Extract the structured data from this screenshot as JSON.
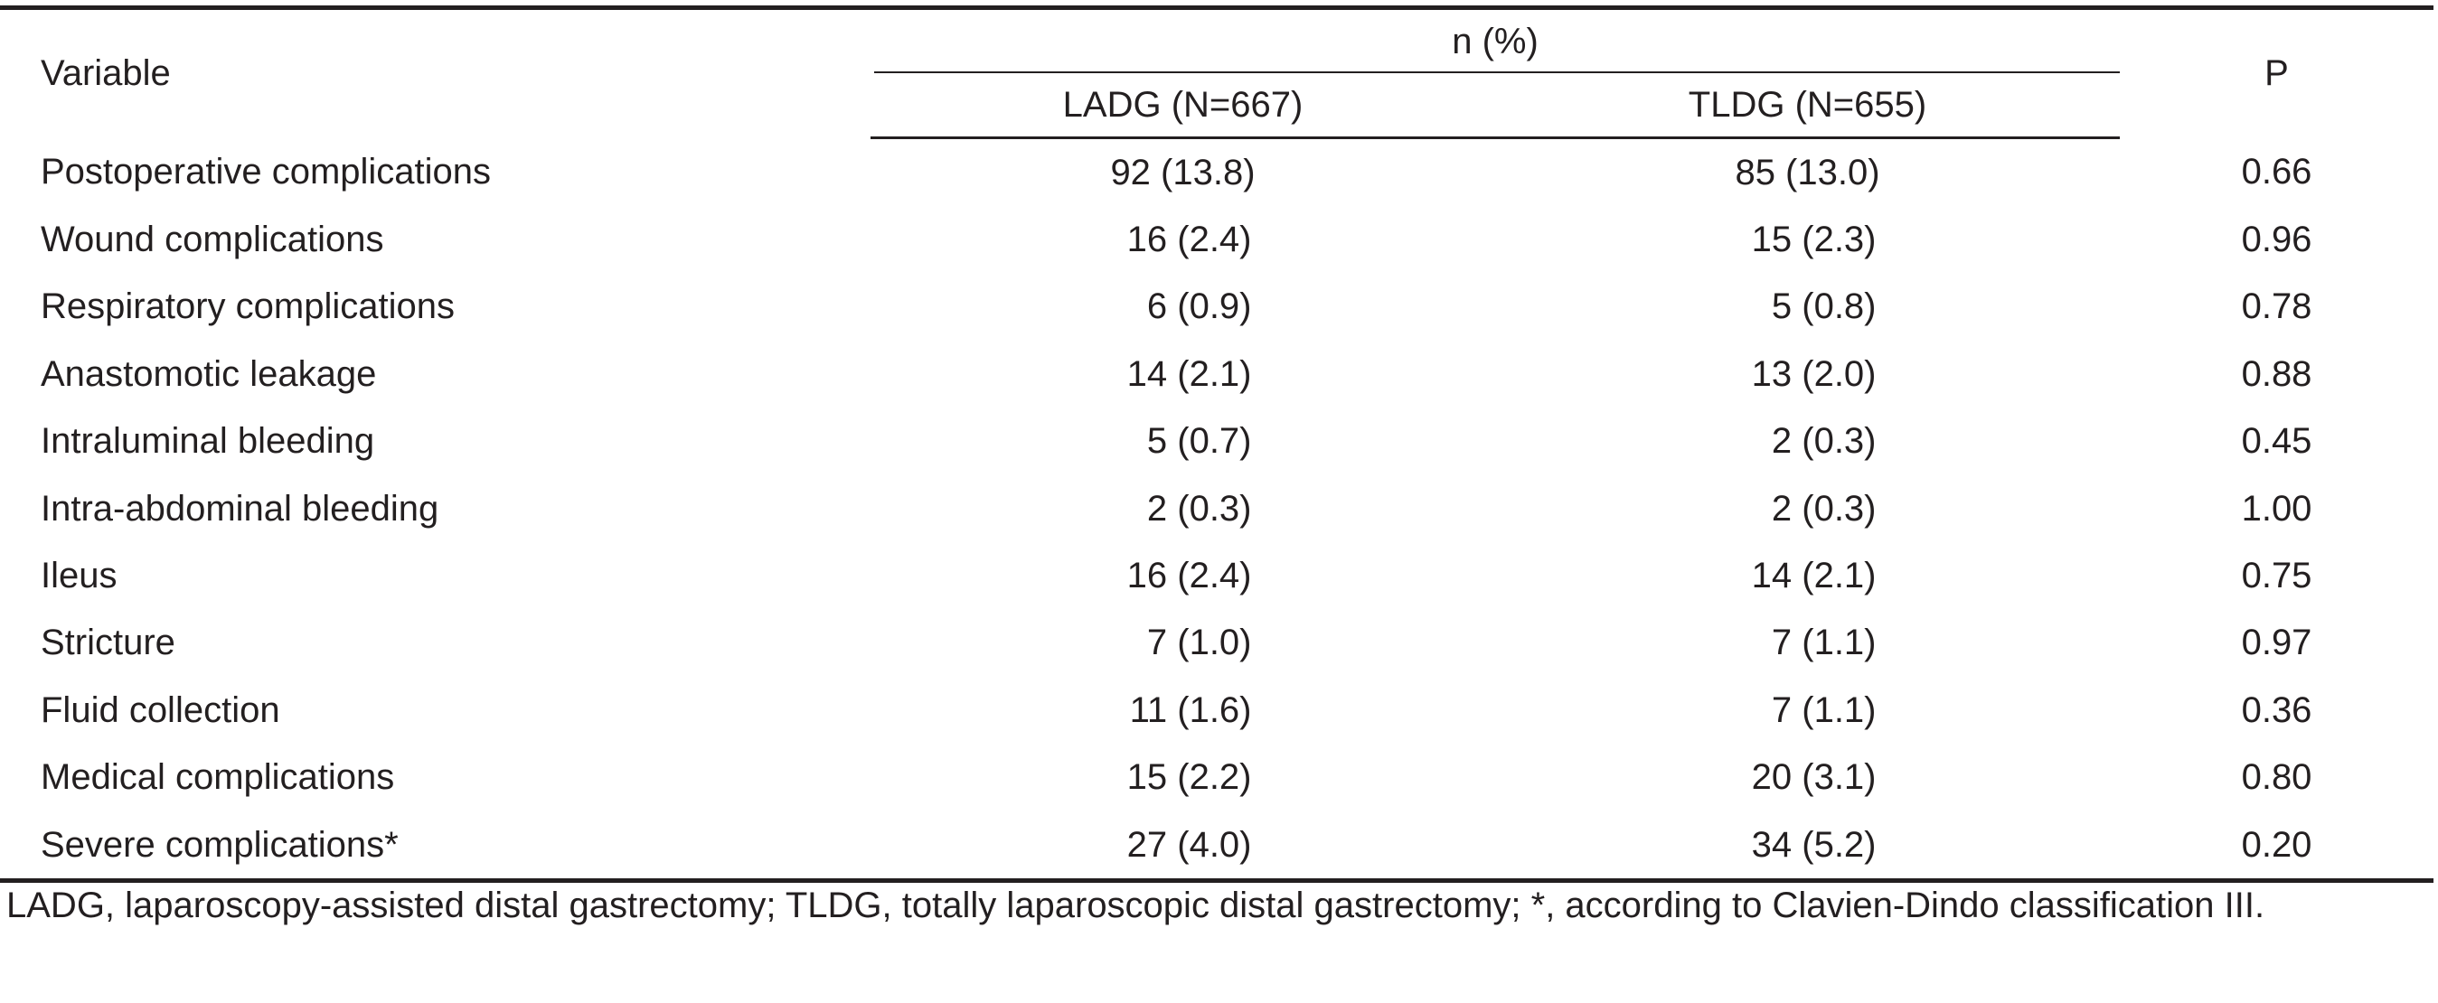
{
  "table": {
    "header": {
      "variable": "Variable",
      "group_header": "n (%)",
      "ladg": "LADG (N=667)",
      "tldg": "TLDG (N=655)",
      "p": "P"
    },
    "rows": [
      {
        "variable": "Postoperative complications",
        "ladg": "92 (13.8)",
        "tldg": "85 (13.0)",
        "p": "0.66"
      },
      {
        "variable": "Wound complications",
        "ladg": "16 (2.4)",
        "tldg": "15 (2.3)",
        "p": "0.96"
      },
      {
        "variable": "Respiratory complications",
        "ladg": "6 (0.9)",
        "tldg": "5 (0.8)",
        "p": "0.78"
      },
      {
        "variable": "Anastomotic leakage",
        "ladg": "14 (2.1)",
        "tldg": "13 (2.0)",
        "p": "0.88"
      },
      {
        "variable": "Intraluminal bleeding",
        "ladg": "5 (0.7)",
        "tldg": "2 (0.3)",
        "p": "0.45"
      },
      {
        "variable": "Intra-abdominal bleeding",
        "ladg": "2 (0.3)",
        "tldg": "2 (0.3)",
        "p": "1.00"
      },
      {
        "variable": "Ileus",
        "ladg": "16 (2.4)",
        "tldg": "14 (2.1)",
        "p": "0.75"
      },
      {
        "variable": "Stricture",
        "ladg": "7 (1.0)",
        "tldg": "7 (1.1)",
        "p": "0.97"
      },
      {
        "variable": "Fluid collection",
        "ladg": "11 (1.6)",
        "tldg": "7 (1.1)",
        "p": "0.36"
      },
      {
        "variable": "Medical complications",
        "ladg": "15 (2.2)",
        "tldg": "20 (3.1)",
        "p": "0.80"
      },
      {
        "variable": "Severe complications*",
        "ladg": "27 (4.0)",
        "tldg": "34 (5.2)",
        "p": "0.20"
      }
    ]
  },
  "footnote": "LADG, laparoscopy-assisted distal gastrectomy; TLDG, totally laparoscopic distal gastrectomy; *, according to Clavien-Dindo classification III."
}
